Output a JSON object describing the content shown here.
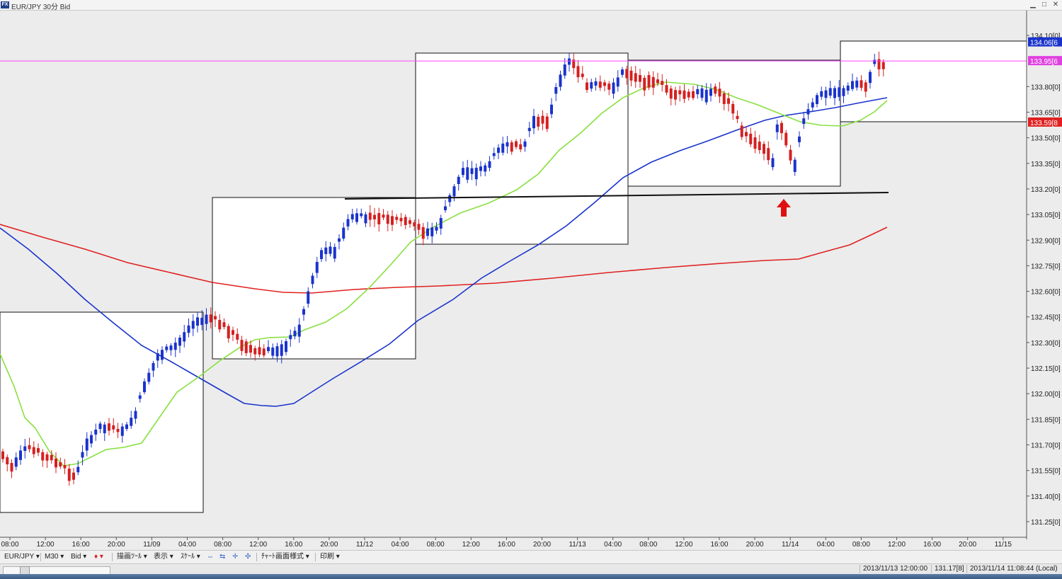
{
  "window": {
    "title": "EUR/JPY 30分 Bid",
    "minimize": "▁",
    "maximize": "□",
    "close": "✕"
  },
  "chart_data": {
    "type": "candlestick",
    "y_ticks": [
      "134.10[0]",
      "133.80[0]",
      "133.65[0]",
      "133.50[0]",
      "133.35[0]",
      "133.20[0]",
      "133.05[0]",
      "132.90[0]",
      "132.75[0]",
      "132.60[0]",
      "132.45[0]",
      "132.30[0]",
      "132.15[0]",
      "132.00[0]",
      "131.85[0]",
      "131.70[0]",
      "131.55[0]",
      "131.40[0]",
      "131.25[0]"
    ],
    "y_tick_values": [
      134.1,
      133.8,
      133.65,
      133.5,
      133.35,
      133.2,
      133.05,
      132.9,
      132.75,
      132.6,
      132.45,
      132.3,
      132.15,
      132.0,
      131.85,
      131.7,
      131.55,
      131.4,
      131.25
    ],
    "x_ticks": [
      "08:00",
      "12:00",
      "16:00",
      "20:00",
      "11/09",
      "04:00",
      "08:00",
      "12:00",
      "16:00",
      "20:00",
      "11/12",
      "04:00",
      "08:00",
      "12:00",
      "16:00",
      "20:00",
      "11/13",
      "04:00",
      "08:00",
      "12:00",
      "16:00",
      "20:00",
      "11/14",
      "04:00",
      "08:00",
      "12:00",
      "16:00",
      "20:00",
      "11/15"
    ],
    "price_labels": [
      {
        "text": "134.06[6",
        "value": 134.06,
        "color": "#1a33cc"
      },
      {
        "text": "133.95[6",
        "value": 133.95,
        "color": "#e040e0"
      },
      {
        "text": "133.59[8",
        "value": 133.59,
        "color": "#e02020"
      }
    ],
    "horizontal_line": {
      "value": 133.95,
      "color": "#ff44ff"
    },
    "ma_short_color": "#88e040",
    "ma_mid_color": "#1a33cc",
    "ma_long_color": "#e02020",
    "candle_up_color": "#1a33cc",
    "candle_down_color": "#d42020",
    "arrow_color": "#e01010"
  },
  "toolbar": {
    "symbol": "EUR/JPY ▾",
    "timeframe": "M30 ▾",
    "side": "Bid ▾",
    "drawing": "描画ﾂｰﾙ ▾",
    "display": "表示 ▾",
    "scale": "ｽｹｰﾙ ▾",
    "chart_style": "ﾁｬｰﾄ画面様式 ▾",
    "print": "印刷 ▾"
  },
  "status": {
    "cursor_time": "2013/11/13 12:00:00",
    "cursor_price": "131.17[8]",
    "local_time": "2013/11/14 11:08:44 (Local)"
  }
}
